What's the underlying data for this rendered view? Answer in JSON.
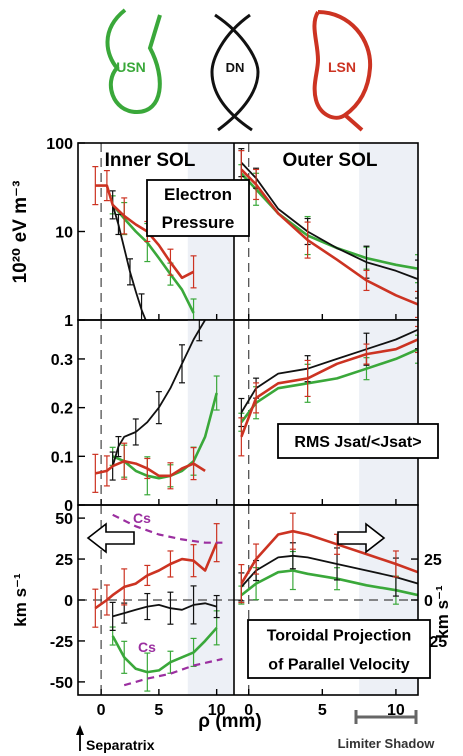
{
  "shapes": [
    {
      "label": "USN",
      "color": "#3aa83a"
    },
    {
      "label": "DN",
      "color": "#111111"
    },
    {
      "label": "LSN",
      "color": "#cc3322"
    }
  ],
  "colors": {
    "usn": "#3aa83a",
    "dn": "#111111",
    "lsn": "#cc3322",
    "cs": "#9b2fa0",
    "shadow": "#edf0f6"
  },
  "headings": {
    "inner": "Inner SOL",
    "outer": "Outer SOL"
  },
  "annotations": {
    "pressure": [
      "Electron",
      "Pressure"
    ],
    "rms": "RMS Jsat/<Jsat>",
    "velocity": [
      "Toroidal Projection",
      "of Parallel Velocity"
    ],
    "cs": "Cs"
  },
  "axis_labels": {
    "top_y": "10²⁰ eV m⁻³",
    "bottom_y_left": "km s⁻¹",
    "bottom_y_right": "km s⁻¹",
    "x": "ρ (mm)",
    "separatrix": "Separatrix",
    "limiter": "Limiter Shadow"
  },
  "chart_data": [
    {
      "type": "line",
      "panel": "electron-pressure",
      "yscale": "log",
      "ylim": [
        1,
        100
      ],
      "yticks": [
        "1",
        "10",
        "100"
      ],
      "inner": {
        "xlim": [
          -2,
          11.5
        ],
        "series": [
          {
            "color": "usn",
            "x": [
              1,
              2,
              3,
              4,
              5,
              6,
              7,
              8
            ],
            "y": [
              20,
              14,
              10,
              7.5,
              5,
              3.3,
              2.2,
              1.2
            ]
          },
          {
            "color": "dn",
            "x": [
              1,
              1.5,
              2,
              2.5,
              3,
              3.5,
              4
            ],
            "y": [
              20,
              12,
              6.5,
              3.5,
              2.1,
              1.3,
              0.9
            ]
          },
          {
            "color": "lsn",
            "x": [
              -0.5,
              0.5,
              1,
              2,
              3,
              4,
              5,
              6,
              7,
              8
            ],
            "y": [
              33,
              33,
              20,
              15,
              12,
              10,
              7,
              4.5,
              3,
              3.5
            ]
          }
        ]
      },
      "outer": {
        "xlim": [
          -1,
          11.5
        ],
        "series": [
          {
            "color": "usn",
            "x": [
              -0.5,
              0.5,
              2,
              4,
              6,
              8,
              10,
              11.5
            ],
            "y": [
              45,
              30,
              16,
              9,
              6.5,
              5,
              4.2,
              3.8
            ]
          },
          {
            "color": "dn",
            "x": [
              -0.5,
              0.5,
              2,
              4,
              6,
              8,
              10,
              11.5
            ],
            "y": [
              60,
              40,
              18,
              10,
              6.5,
              4.5,
              3.6,
              2.9
            ]
          },
          {
            "color": "lsn",
            "x": [
              -0.5,
              0.5,
              2,
              4,
              6,
              8,
              10,
              11.5
            ],
            "y": [
              50,
              34,
              16,
              8,
              4.8,
              2.8,
              1.9,
              1.5
            ]
          }
        ]
      }
    },
    {
      "type": "line",
      "panel": "rms-jsat",
      "ylim": [
        0,
        0.38
      ],
      "yticks": [
        "0",
        "0.1",
        "0.2",
        "0.3"
      ],
      "inner": {
        "xlim": [
          -2,
          11.5
        ],
        "series": [
          {
            "color": "usn",
            "x": [
              1,
              2,
              3,
              4,
              5,
              6,
              7,
              8,
              9,
              10
            ],
            "y": [
              0.1,
              0.09,
              0.07,
              0.06,
              0.055,
              0.06,
              0.07,
              0.09,
              0.14,
              0.23
            ]
          },
          {
            "color": "dn",
            "x": [
              1,
              1.5,
              2,
              3,
              4,
              5,
              6,
              7,
              8,
              8.5,
              9
            ],
            "y": [
              0.08,
              0.12,
              0.14,
              0.15,
              0.17,
              0.2,
              0.24,
              0.29,
              0.34,
              0.36,
              0.38
            ]
          },
          {
            "color": "lsn",
            "x": [
              -0.5,
              0.5,
              1,
              2,
              3,
              4,
              5,
              6,
              7,
              8,
              9
            ],
            "y": [
              0.065,
              0.07,
              0.08,
              0.09,
              0.085,
              0.075,
              0.06,
              0.06,
              0.075,
              0.085,
              0.07
            ]
          }
        ]
      },
      "outer": {
        "xlim": [
          -1,
          11.5
        ],
        "series": [
          {
            "color": "usn",
            "x": [
              -0.5,
              0.5,
              2,
              4,
              6,
              8,
              10,
              11.5
            ],
            "y": [
              0.17,
              0.21,
              0.24,
              0.25,
              0.26,
              0.28,
              0.3,
              0.32
            ]
          },
          {
            "color": "dn",
            "x": [
              -0.5,
              0.5,
              2,
              4,
              6,
              8,
              10,
              11.5
            ],
            "y": [
              0.19,
              0.24,
              0.27,
              0.28,
              0.3,
              0.32,
              0.34,
              0.36
            ]
          },
          {
            "color": "lsn",
            "x": [
              -0.5,
              0.5,
              2,
              4,
              6,
              8,
              10,
              11.5
            ],
            "y": [
              0.14,
              0.22,
              0.25,
              0.26,
              0.29,
              0.31,
              0.32,
              0.34
            ]
          }
        ]
      }
    },
    {
      "type": "line",
      "panel": "parallel-velocity",
      "ylim": [
        -58,
        58
      ],
      "yticks_left": [
        "-50",
        "-25",
        "0",
        "25",
        "50"
      ],
      "yticks_right": [
        "-25",
        "0",
        "25"
      ],
      "inner": {
        "xlim": [
          -2,
          11.5
        ],
        "series": [
          {
            "color": "usn",
            "x": [
              1,
              2,
              3,
              4,
              5,
              6,
              7,
              8,
              9,
              10
            ],
            "y": [
              -22,
              -35,
              -42,
              -44,
              -43,
              -38,
              -35,
              -32,
              -25,
              -17
            ]
          },
          {
            "color": "dn",
            "x": [
              1,
              2,
              3,
              4,
              5,
              6,
              7,
              8,
              9,
              10
            ],
            "y": [
              -10,
              -8,
              -6,
              -4,
              -3,
              -5,
              -6,
              -3,
              -2,
              -4
            ]
          },
          {
            "color": "lsn",
            "x": [
              -0.5,
              0.5,
              1,
              2,
              3,
              4,
              5,
              6,
              7,
              8,
              9,
              10
            ],
            "y": [
              -5,
              0,
              3,
              8,
              10,
              15,
              18,
              22,
              25,
              24,
              18,
              35
            ]
          },
          {
            "color": "cs",
            "dashed": true,
            "x": [
              1,
              3,
              5,
              7,
              9,
              10.5
            ],
            "y": [
              52,
              45,
              40,
              37,
              35,
              35
            ]
          },
          {
            "color": "cs",
            "dashed": true,
            "x": [
              2,
              4,
              6,
              8,
              10.5
            ],
            "y": [
              -52,
              -48,
              -45,
              -40,
              -36
            ]
          }
        ]
      },
      "outer": {
        "xlim": [
          -1,
          11.5
        ],
        "series": [
          {
            "color": "usn",
            "x": [
              -0.5,
              0.5,
              2,
              3,
              4,
              6,
              8,
              10,
              11.5
            ],
            "y": [
              3,
              10,
              17,
              18,
              16,
              13,
              9,
              6,
              3
            ]
          },
          {
            "color": "dn",
            "x": [
              -0.5,
              0.5,
              2,
              3,
              4,
              6,
              8,
              10,
              11.5
            ],
            "y": [
              8,
              18,
              26,
              27,
              26,
              22,
              18,
              14,
              10
            ]
          },
          {
            "color": "lsn",
            "x": [
              -0.5,
              0.5,
              2,
              3,
              4,
              6,
              8,
              10,
              11.5
            ],
            "y": [
              10,
              25,
              40,
              42,
              40,
              34,
              28,
              22,
              17
            ]
          }
        ]
      }
    }
  ],
  "xticks": {
    "inner": [
      "0",
      "5",
      "10"
    ],
    "outer": [
      "0",
      "5",
      "10"
    ]
  }
}
